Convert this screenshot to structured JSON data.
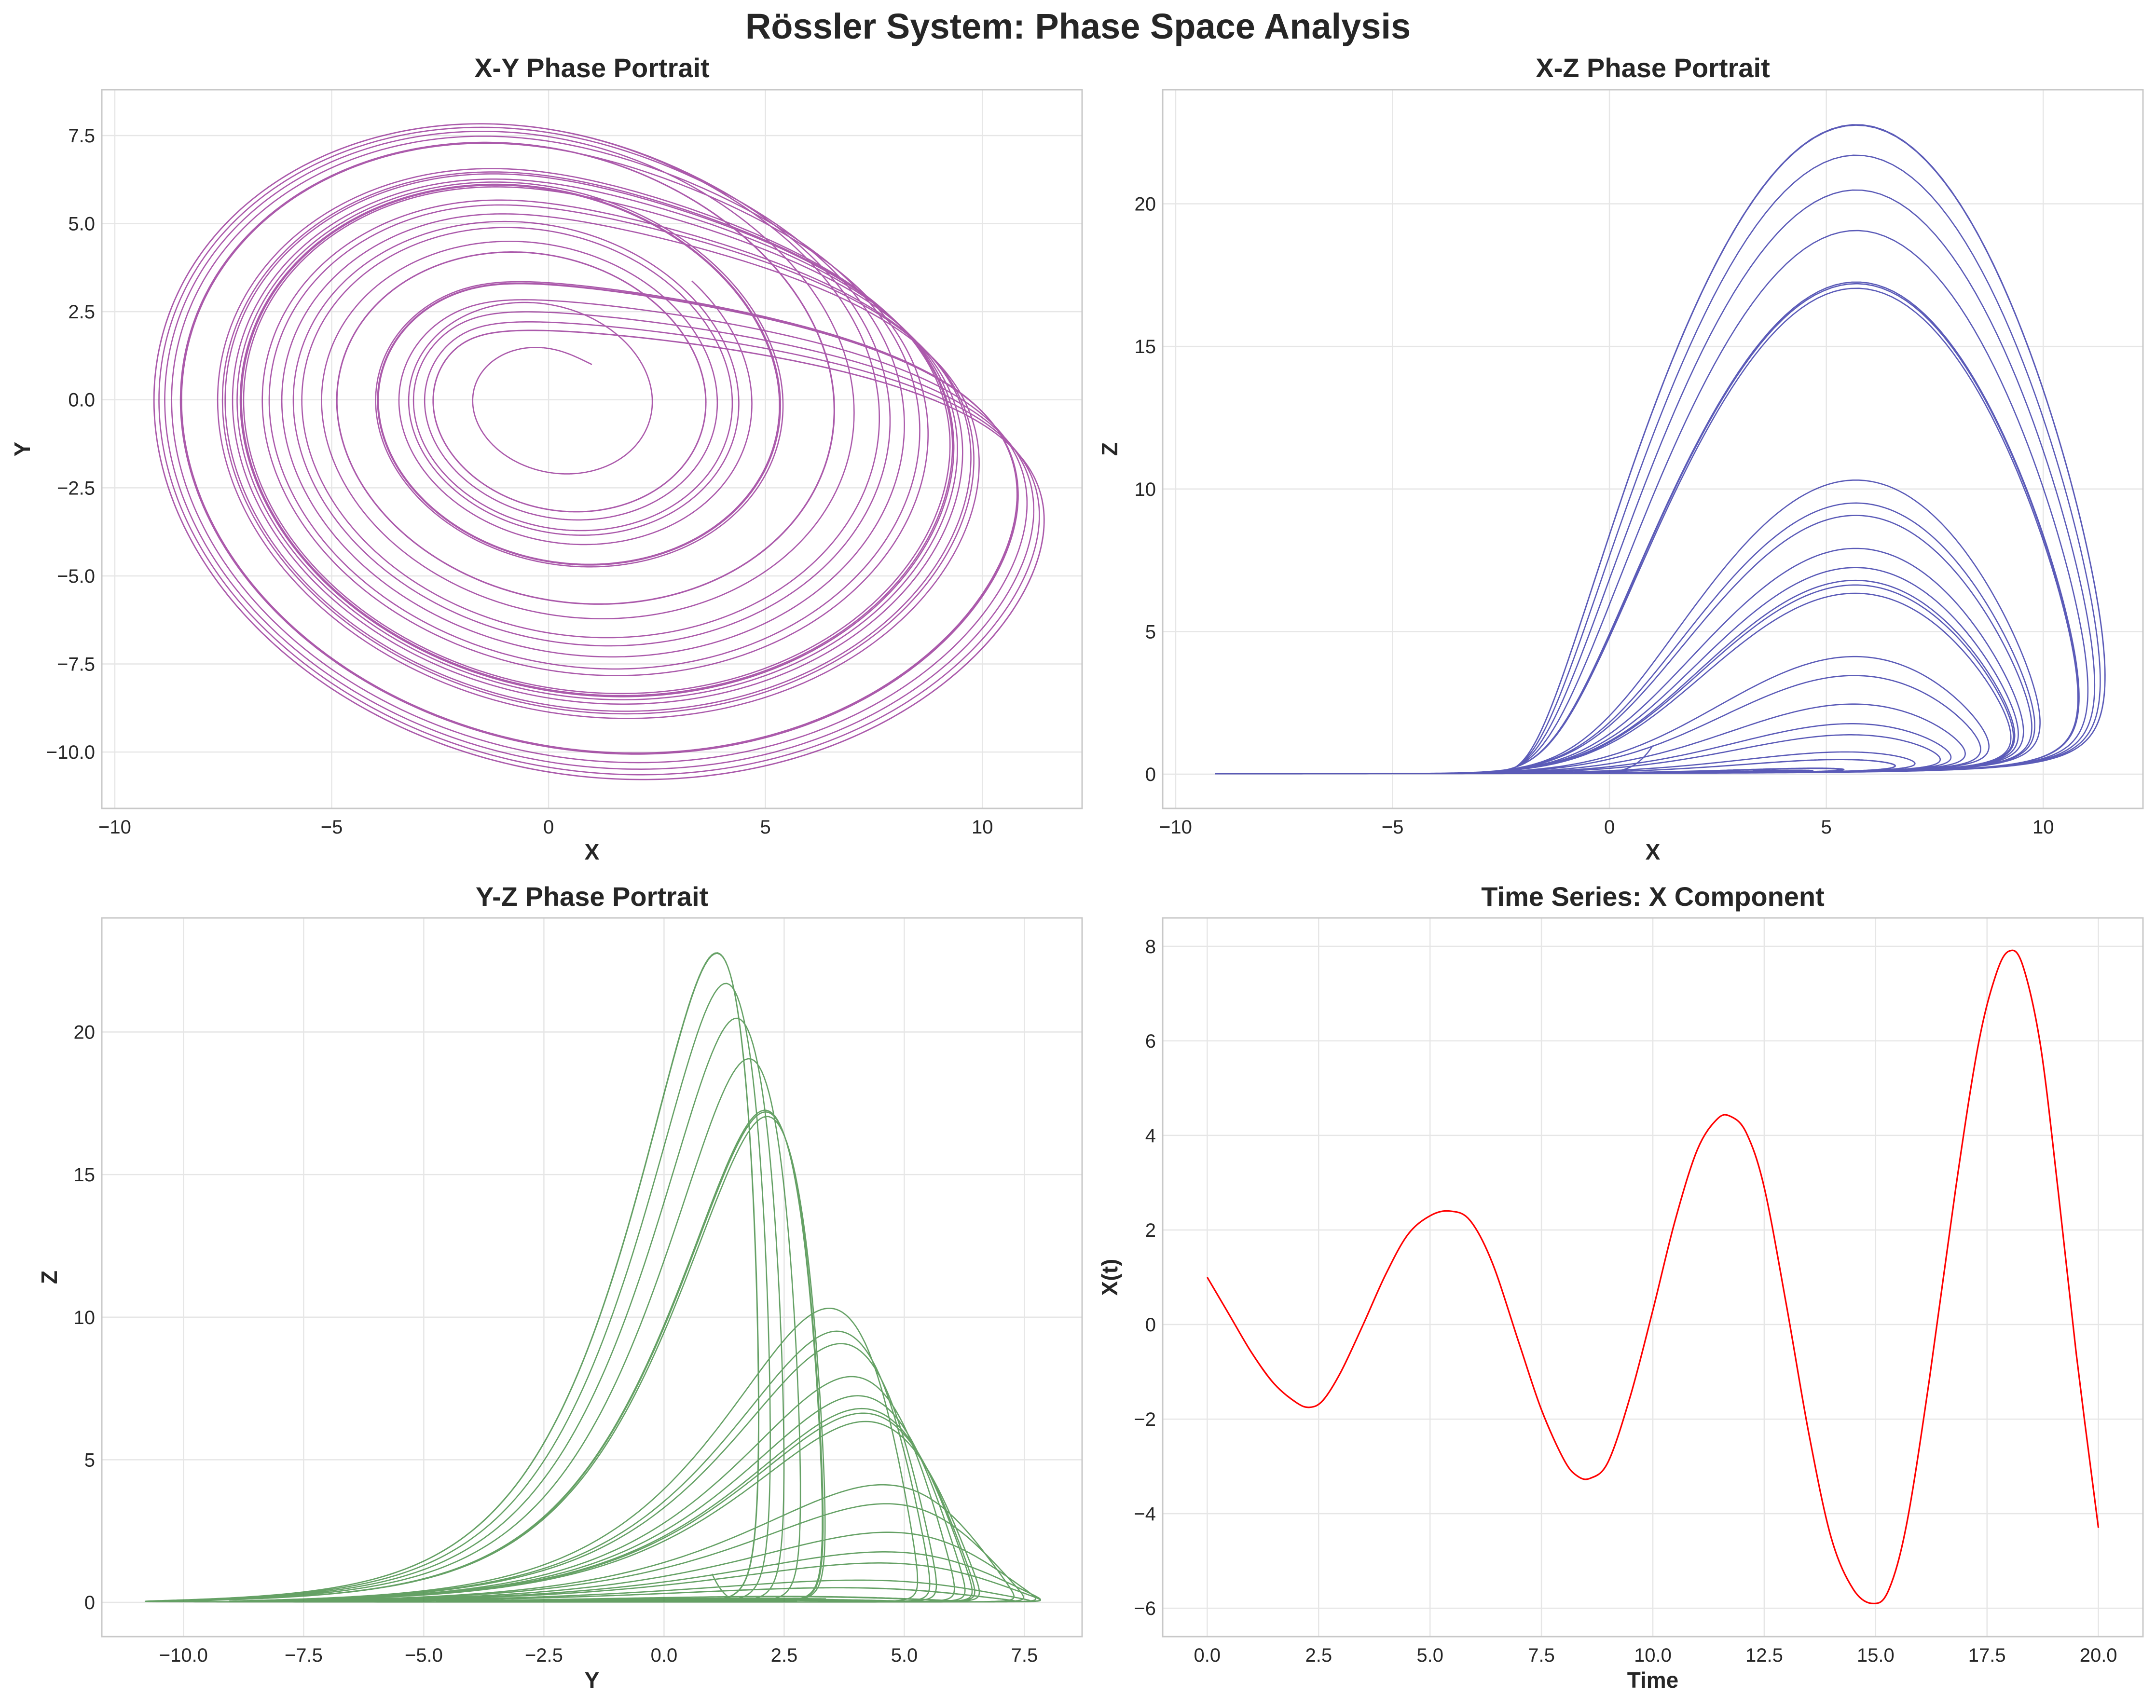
{
  "figure": {
    "suptitle": "Rössler System: Phase Space Analysis"
  },
  "colors": {
    "xy": "#8b1a8b",
    "xz": "#1c1c9c",
    "yz": "#2a7d2a",
    "ts": "#ff0000",
    "grid": "#e6e6e6",
    "spine": "#c8c8c8",
    "text": "#262626"
  },
  "chart_data": [
    {
      "id": "xy",
      "type": "line",
      "title": "X-Y Phase Portrait",
      "xlabel": "X",
      "ylabel": "Y",
      "xlim": [
        -10.3,
        12.3
      ],
      "ylim": [
        -11.6,
        8.8
      ],
      "xticks": [
        -10,
        -5,
        0,
        5,
        10
      ],
      "xtick_labels": [
        "−10",
        "−5",
        "0",
        "5",
        "10"
      ],
      "yticks": [
        -10,
        -7.5,
        -5,
        -2.5,
        0,
        2.5,
        5,
        7.5
      ],
      "ytick_labels": [
        "−10.0",
        "−7.5",
        "−5.0",
        "−2.5",
        "0.0",
        "2.5",
        "5.0",
        "7.5"
      ],
      "grid": true,
      "series": [
        {
          "source": "rossler",
          "x": "x",
          "y": "y",
          "color": "#8b1a8b"
        }
      ]
    },
    {
      "id": "xz",
      "type": "line",
      "title": "X-Z Phase Portrait",
      "xlabel": "X",
      "ylabel": "Z",
      "xlim": [
        -10.3,
        12.3
      ],
      "ylim": [
        -1.2,
        24.0
      ],
      "xticks": [
        -10,
        -5,
        0,
        5,
        10
      ],
      "xtick_labels": [
        "−10",
        "−5",
        "0",
        "5",
        "10"
      ],
      "yticks": [
        0,
        5,
        10,
        15,
        20
      ],
      "ytick_labels": [
        "0",
        "5",
        "10",
        "15",
        "20"
      ],
      "grid": true,
      "series": [
        {
          "source": "rossler",
          "x": "x",
          "y": "z",
          "color": "#1c1c9c"
        }
      ]
    },
    {
      "id": "yz",
      "type": "line",
      "title": "Y-Z Phase Portrait",
      "xlabel": "Y",
      "ylabel": "Z",
      "xlim": [
        -11.7,
        8.7
      ],
      "ylim": [
        -1.2,
        24.0
      ],
      "xticks": [
        -10,
        -7.5,
        -5,
        -2.5,
        0,
        2.5,
        5,
        7.5
      ],
      "xtick_labels": [
        "−10.0",
        "−7.5",
        "−5.0",
        "−2.5",
        "0.0",
        "2.5",
        "5.0",
        "7.5"
      ],
      "yticks": [
        0,
        5,
        10,
        15,
        20
      ],
      "ytick_labels": [
        "0",
        "5",
        "10",
        "15",
        "20"
      ],
      "grid": true,
      "series": [
        {
          "source": "rossler",
          "x": "y",
          "y": "z",
          "color": "#2a7d2a"
        }
      ]
    },
    {
      "id": "ts",
      "type": "line",
      "title": "Time Series: X Component",
      "xlabel": "Time",
      "ylabel": "X(t)",
      "xlim": [
        -1.0,
        21.0
      ],
      "ylim": [
        -6.6,
        8.6
      ],
      "xticks": [
        0,
        2.5,
        5,
        7.5,
        10,
        12.5,
        15,
        17.5,
        20
      ],
      "xtick_labels": [
        "0.0",
        "2.5",
        "5.0",
        "7.5",
        "10.0",
        "12.5",
        "15.0",
        "17.5",
        "20.0"
      ],
      "yticks": [
        -6,
        -4,
        -2,
        0,
        2,
        4,
        6,
        8
      ],
      "ytick_labels": [
        "−6",
        "−4",
        "−2",
        "0",
        "2",
        "4",
        "6",
        "8"
      ],
      "grid": true,
      "series": [
        {
          "name": "",
          "color": "#ff0000",
          "x": [
            0,
            0.5,
            1.0,
            1.5,
            2.0,
            2.3,
            2.6,
            3.0,
            3.5,
            4.0,
            4.5,
            5.0,
            5.45,
            5.9,
            6.4,
            7.0,
            7.5,
            8.0,
            8.3,
            8.6,
            9.0,
            9.5,
            10.0,
            10.5,
            11.0,
            11.45,
            11.75,
            12.1,
            12.5,
            13.0,
            13.5,
            14.0,
            14.5,
            14.95,
            15.3,
            15.7,
            16.2,
            16.8,
            17.3,
            17.7,
            18.0,
            18.3,
            18.7,
            19.1,
            19.5,
            20.0
          ],
          "y": [
            1.0,
            0.2,
            -0.6,
            -1.25,
            -1.65,
            -1.75,
            -1.6,
            -1.0,
            0.0,
            1.05,
            1.9,
            2.3,
            2.4,
            2.2,
            1.3,
            -0.4,
            -1.8,
            -2.85,
            -3.2,
            -3.25,
            -2.9,
            -1.5,
            0.3,
            2.2,
            3.7,
            4.35,
            4.4,
            4.05,
            2.9,
            0.4,
            -2.3,
            -4.5,
            -5.6,
            -5.9,
            -5.6,
            -4.2,
            -1.2,
            2.9,
            5.9,
            7.4,
            7.9,
            7.6,
            5.9,
            2.8,
            -0.6,
            -4.3
          ]
        }
      ]
    }
  ]
}
